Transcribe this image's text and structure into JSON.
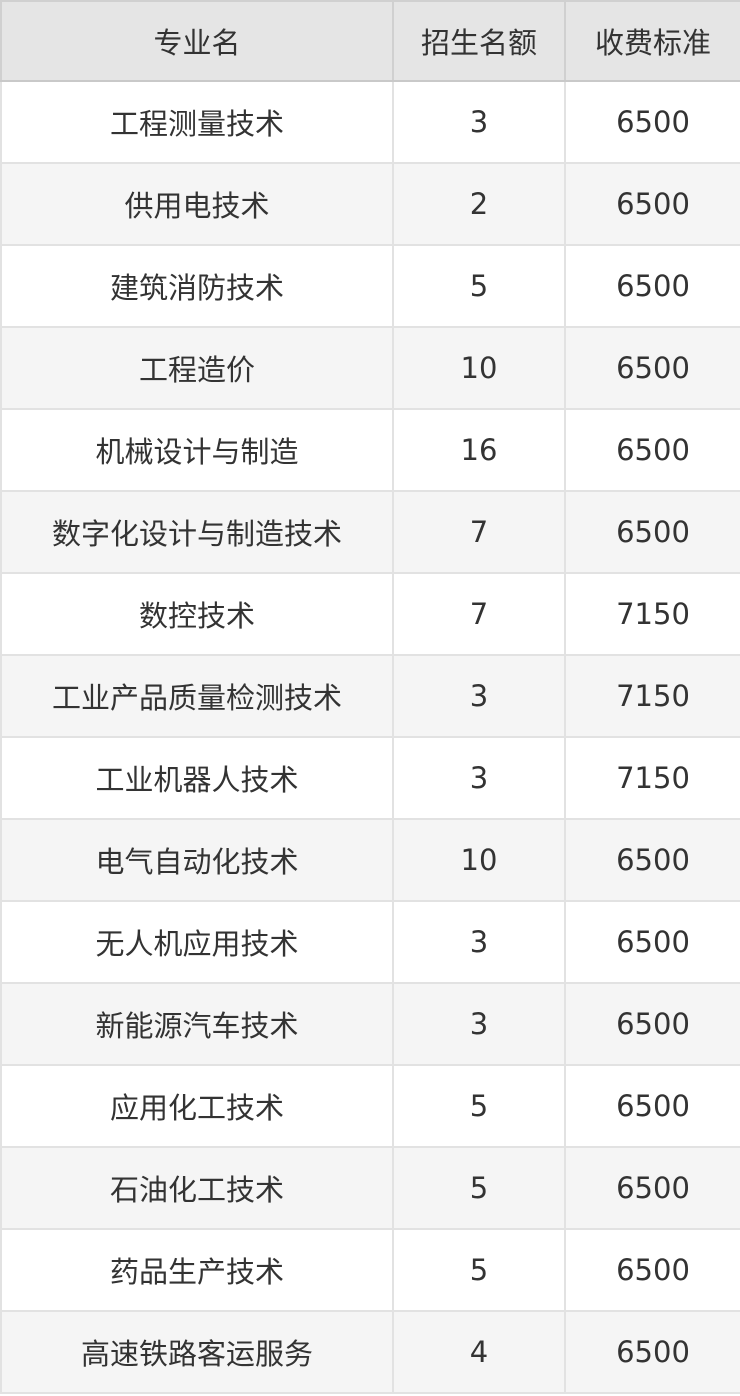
{
  "colors": {
    "header_bg": "#e5e5e5",
    "stripe_bg": "#f5f5f5",
    "row_bg": "#ffffff",
    "header_border": "#d0d0d0",
    "body_border": "#e2e2e2",
    "text": "#333333"
  },
  "table": {
    "columns": [
      "专业名",
      "招生名额",
      "收费标准"
    ],
    "rows": [
      {
        "major": "工程测量技术",
        "quota": "3",
        "fee": "6500"
      },
      {
        "major": "供用电技术",
        "quota": "2",
        "fee": "6500"
      },
      {
        "major": "建筑消防技术",
        "quota": "5",
        "fee": "6500"
      },
      {
        "major": "工程造价",
        "quota": "10",
        "fee": "6500"
      },
      {
        "major": "机械设计与制造",
        "quota": "16",
        "fee": "6500"
      },
      {
        "major": "数字化设计与制造技术",
        "quota": "7",
        "fee": "6500"
      },
      {
        "major": "数控技术",
        "quota": "7",
        "fee": "7150"
      },
      {
        "major": "工业产品质量检测技术",
        "quota": "3",
        "fee": "7150"
      },
      {
        "major": "工业机器人技术",
        "quota": "3",
        "fee": "7150"
      },
      {
        "major": "电气自动化技术",
        "quota": "10",
        "fee": "6500"
      },
      {
        "major": "无人机应用技术",
        "quota": "3",
        "fee": "6500"
      },
      {
        "major": "新能源汽车技术",
        "quota": "3",
        "fee": "6500"
      },
      {
        "major": "应用化工技术",
        "quota": "5",
        "fee": "6500"
      },
      {
        "major": "石油化工技术",
        "quota": "5",
        "fee": "6500"
      },
      {
        "major": "药品生产技术",
        "quota": "5",
        "fee": "6500"
      },
      {
        "major": "高速铁路客运服务",
        "quota": "4",
        "fee": "6500"
      }
    ]
  },
  "chart_data": {
    "type": "table",
    "title": "",
    "columns": [
      "专业名",
      "招生名额",
      "收费标准"
    ],
    "rows": [
      [
        "工程测量技术",
        3,
        6500
      ],
      [
        "供用电技术",
        2,
        6500
      ],
      [
        "建筑消防技术",
        5,
        6500
      ],
      [
        "工程造价",
        10,
        6500
      ],
      [
        "机械设计与制造",
        16,
        6500
      ],
      [
        "数字化设计与制造技术",
        7,
        6500
      ],
      [
        "数控技术",
        7,
        7150
      ],
      [
        "工业产品质量检测技术",
        3,
        7150
      ],
      [
        "工业机器人技术",
        3,
        7150
      ],
      [
        "电气自动化技术",
        10,
        6500
      ],
      [
        "无人机应用技术",
        3,
        6500
      ],
      [
        "新能源汽车技术",
        3,
        6500
      ],
      [
        "应用化工技术",
        5,
        6500
      ],
      [
        "石油化工技术",
        5,
        6500
      ],
      [
        "药品生产技术",
        5,
        6500
      ],
      [
        "高速铁路客运服务",
        4,
        6500
      ]
    ]
  }
}
